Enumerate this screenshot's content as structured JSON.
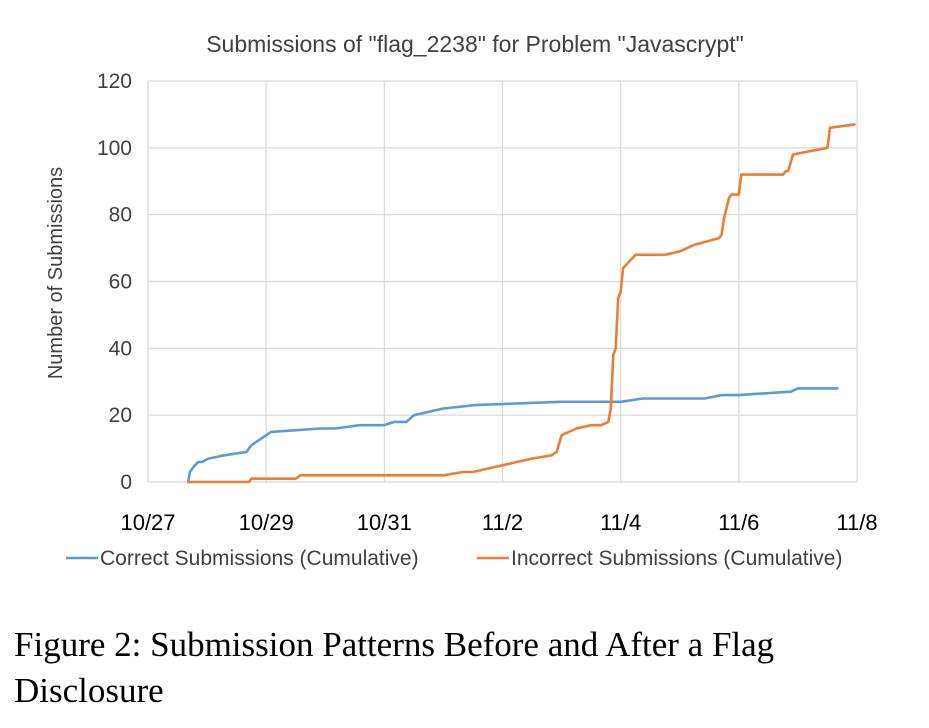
{
  "chart_data": {
    "type": "line",
    "title": "Submissions of \"flag_2238\" for Problem \"Javascrypt\"",
    "xlabel": "",
    "ylabel": "Number of Submissions",
    "x_ticks": [
      "10/27",
      "10/29",
      "10/31",
      "11/2",
      "11/4",
      "11/6",
      "11/8"
    ],
    "y_ticks": [
      "0",
      "20",
      "40",
      "60",
      "80",
      "100",
      "120"
    ],
    "xlim": [
      "10/27",
      "11/8"
    ],
    "ylim": [
      0,
      120
    ],
    "grid": true,
    "legend_position": "bottom",
    "series": [
      {
        "name": "Correct Submissions (Cumulative)",
        "color": "#5b9bd5",
        "x": [
          "10/27 16:20",
          "10/27 17:00",
          "10/27 18:00",
          "10/27 19:00",
          "10/27 20:30",
          "10/27 22:00",
          "10/28 00:30",
          "10/28 07:00",
          "10/28 16:00",
          "10/28 17:00",
          "10/28 18:00",
          "10/29 02:00",
          "10/29 22:00",
          "10/30 04:00",
          "10/30 14:00",
          "10/30 22:00",
          "10/31 00:00",
          "10/31 04:00",
          "10/31 09:00",
          "10/31 12:00",
          "11/1 00:00",
          "11/1 13:00",
          "11/3 00:00",
          "11/4 00:00",
          "11/4 09:00",
          "11/5 00:00",
          "11/5 10:00",
          "11/5 17:00",
          "11/6 00:00",
          "11/6 20:00",
          "11/6 21:00",
          "11/7 00:00",
          "11/7 16:00"
        ],
        "y": [
          0,
          3,
          4,
          5,
          6,
          6,
          7,
          8,
          9,
          10,
          11,
          15,
          16,
          16,
          17,
          17,
          17,
          18,
          18,
          20,
          22,
          23,
          24,
          24,
          25,
          25,
          25,
          26,
          26,
          27,
          27,
          28,
          28
        ]
      },
      {
        "name": "Incorrect Submissions (Cumulative)",
        "color": "#ed7d31",
        "x": [
          "10/27 16:20",
          "10/28 00:00",
          "10/28 12:00",
          "10/28 17:00",
          "10/28 18:00",
          "10/29 12:00",
          "10/29 14:00",
          "10/30 12:00",
          "10/31 12:00",
          "11/1 00:00",
          "11/1 08:00",
          "11/1 12:00",
          "11/1 18:00",
          "11/2 00:00",
          "11/2 06:00",
          "11/2 12:00",
          "11/2 20:00",
          "11/2 22:00",
          "11/3 00:00",
          "11/3 06:00",
          "11/3 12:00",
          "11/3 16:00",
          "11/3 19:00",
          "11/3 20:00",
          "11/3 21:00",
          "11/3 22:00",
          "11/3 23:00",
          "11/4 00:00",
          "11/4 01:00",
          "11/4 06:00",
          "11/4 18:00",
          "11/5 00:00",
          "11/5 06:00",
          "11/5 16:00",
          "11/5 17:00",
          "11/5 18:00",
          "11/5 20:00",
          "11/5 21:00",
          "11/6 00:00",
          "11/6 01:00",
          "11/6 18:00",
          "11/6 19:00",
          "11/6 20:00",
          "11/6 22:00",
          "11/7 12:00",
          "11/7 13:00",
          "11/7 23:00"
        ],
        "y": [
          0,
          0,
          0,
          0,
          1,
          1,
          2,
          2,
          2,
          2,
          3,
          3,
          4,
          5,
          6,
          7,
          8,
          9,
          14,
          16,
          17,
          17,
          18,
          22,
          38,
          40,
          55,
          57,
          64,
          68,
          68,
          69,
          71,
          73,
          74,
          79,
          85,
          86,
          86,
          92,
          92,
          93,
          93,
          98,
          100,
          106,
          107
        ]
      }
    ]
  },
  "caption": "Figure 2: Submission Patterns Before and After a Flag Disclosure"
}
